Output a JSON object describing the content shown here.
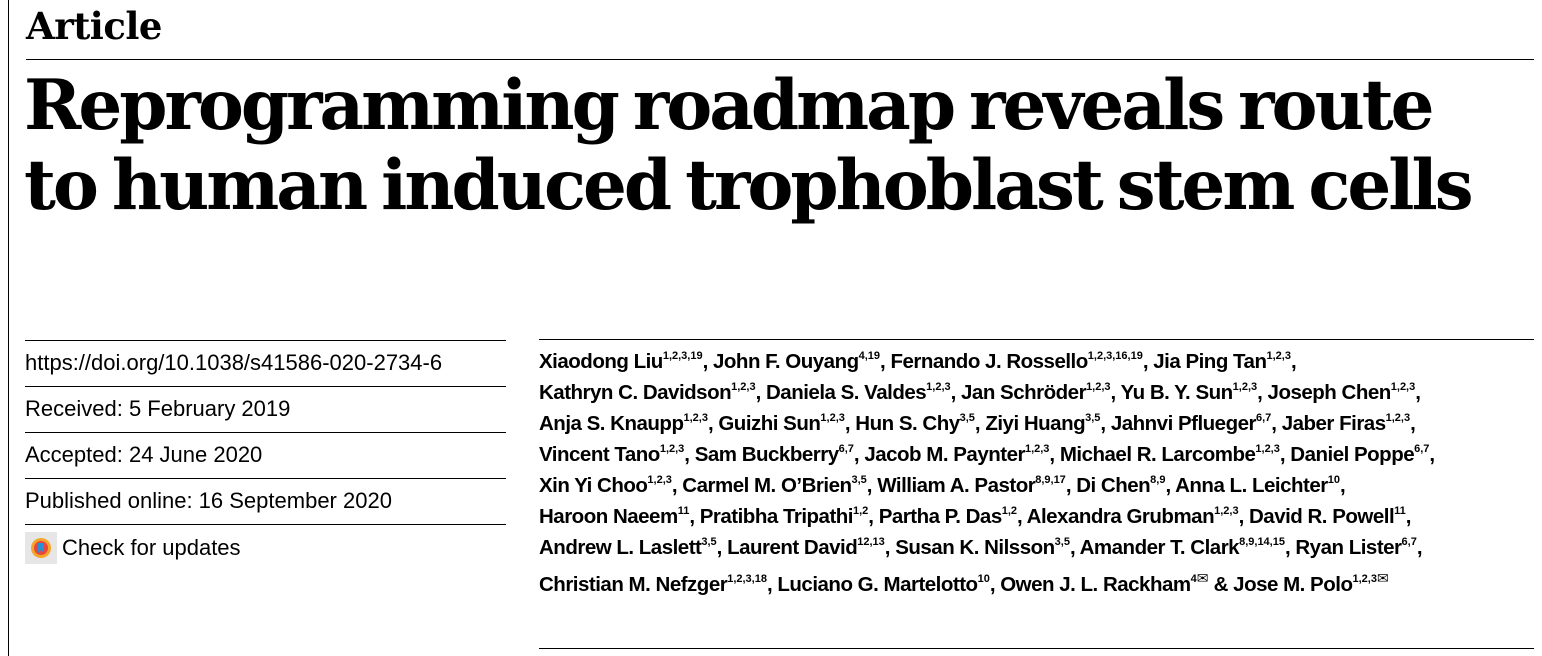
{
  "section_label": "Article",
  "title_lines": [
    "Reprogramming roadmap reveals route",
    "to human induced trophoblast stem cells"
  ],
  "meta": {
    "doi": "https://doi.org/10.1038/s41586-020-2734-6",
    "received": "Received: 5 February 2019",
    "accepted": "Accepted: 24 June 2020",
    "published": "Published online: 16 September 2020",
    "check_updates": "Check for updates"
  },
  "authors": [
    {
      "name": "Xiaodong Liu",
      "aff": "1,2,3,19",
      "sep": ", "
    },
    {
      "name": "John F. Ouyang",
      "aff": "4,19",
      "sep": ", "
    },
    {
      "name": "Fernando J. Rossello",
      "aff": "1,2,3,16,19",
      "sep": ", "
    },
    {
      "name": "Jia Ping Tan",
      "aff": "1,2,3",
      "sep": ", ",
      "br": true
    },
    {
      "name": "Kathryn C. Davidson",
      "aff": "1,2,3",
      "sep": ", "
    },
    {
      "name": "Daniela S. Valdes",
      "aff": "1,2,3",
      "sep": ", "
    },
    {
      "name": "Jan Schröder",
      "aff": "1,2,3",
      "sep": ", "
    },
    {
      "name": "Yu B. Y. Sun",
      "aff": "1,2,3",
      "sep": ", "
    },
    {
      "name": "Joseph Chen",
      "aff": "1,2,3",
      "sep": ", ",
      "br": true
    },
    {
      "name": "Anja S. Knaupp",
      "aff": "1,2,3",
      "sep": ", "
    },
    {
      "name": "Guizhi Sun",
      "aff": "1,2,3",
      "sep": ", "
    },
    {
      "name": "Hun S. Chy",
      "aff": "3,5",
      "sep": ", "
    },
    {
      "name": "Ziyi Huang",
      "aff": "3,5",
      "sep": ", "
    },
    {
      "name": "Jahnvi Pflueger",
      "aff": "6,7",
      "sep": ", "
    },
    {
      "name": "Jaber Firas",
      "aff": "1,2,3",
      "sep": ", ",
      "br": true
    },
    {
      "name": "Vincent Tano",
      "aff": "1,2,3",
      "sep": ", "
    },
    {
      "name": "Sam Buckberry",
      "aff": "6,7",
      "sep": ", "
    },
    {
      "name": "Jacob M. Paynter",
      "aff": "1,2,3",
      "sep": ", "
    },
    {
      "name": "Michael R. Larcombe",
      "aff": "1,2,3",
      "sep": ", "
    },
    {
      "name": "Daniel Poppe",
      "aff": "6,7",
      "sep": ", ",
      "br": true
    },
    {
      "name": "Xin Yi Choo",
      "aff": "1,2,3",
      "sep": ", "
    },
    {
      "name": "Carmel M. O’Brien",
      "aff": "3,5",
      "sep": ", "
    },
    {
      "name": "William A. Pastor",
      "aff": "8,9,17",
      "sep": ", "
    },
    {
      "name": "Di Chen",
      "aff": "8,9",
      "sep": ", "
    },
    {
      "name": "Anna L. Leichter",
      "aff": "10",
      "sep": ", ",
      "br": true
    },
    {
      "name": "Haroon Naeem",
      "aff": "11",
      "sep": ", "
    },
    {
      "name": "Pratibha Tripathi",
      "aff": "1,2",
      "sep": ", "
    },
    {
      "name": "Partha P. Das",
      "aff": "1,2",
      "sep": ", "
    },
    {
      "name": "Alexandra Grubman",
      "aff": "1,2,3",
      "sep": ", "
    },
    {
      "name": "David R. Powell",
      "aff": "11",
      "sep": ", ",
      "br": true
    },
    {
      "name": "Andrew L. Laslett",
      "aff": "3,5",
      "sep": ", "
    },
    {
      "name": "Laurent David",
      "aff": "12,13",
      "sep": ", "
    },
    {
      "name": "Susan K. Nilsson",
      "aff": "3,5",
      "sep": ", "
    },
    {
      "name": "Amander T. Clark",
      "aff": "8,9,14,15",
      "sep": ", "
    },
    {
      "name": "Ryan Lister",
      "aff": "6,7",
      "sep": ", ",
      "br": true
    },
    {
      "name": "Christian M. Nefzger",
      "aff": "1,2,3,18",
      "sep": ", "
    },
    {
      "name": "Luciano G. Martelotto",
      "aff": "10",
      "sep": ", "
    },
    {
      "name": "Owen J. L. Rackham",
      "aff": "4",
      "mail": true,
      "sep": " & "
    },
    {
      "name": "Jose M. Polo",
      "aff": "1,2,3",
      "mail": true,
      "sep": ""
    }
  ]
}
